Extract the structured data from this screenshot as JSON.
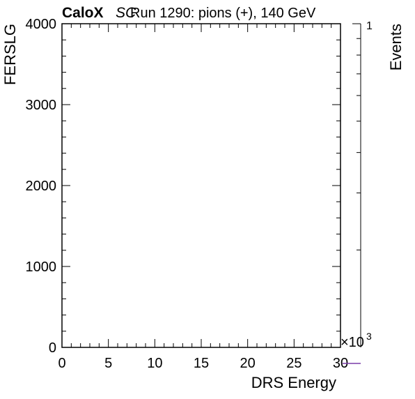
{
  "chart_data": {
    "type": "heatmap",
    "experiment": "CaloX",
    "experiment_suffix": "SC",
    "title": "Run 1290: pions (+), 140 GeV",
    "xlabel": "DRS Energy",
    "ylabel": "FERSLG",
    "zlabel": "Events",
    "x_multiplier": "×10",
    "x_multiplier_exp": "3",
    "xlim": [
      0,
      30
    ],
    "ylim": [
      0,
      4000
    ],
    "zlim": [
      0,
      1
    ],
    "x_ticks": [
      0,
      5,
      10,
      15,
      20,
      25,
      30
    ],
    "x_tick_labels": [
      "0",
      "5",
      "10",
      "15",
      "20",
      "25",
      "30"
    ],
    "y_ticks": [
      0,
      1000,
      2000,
      3000,
      4000
    ],
    "y_tick_labels": [
      "0",
      "1000",
      "2000",
      "3000",
      "4000"
    ],
    "z_tick_labels": [
      "1"
    ],
    "z_scale": "log",
    "palette_colors": [
      "#5b1f8f",
      "#7a3ca8"
    ],
    "bins": []
  }
}
